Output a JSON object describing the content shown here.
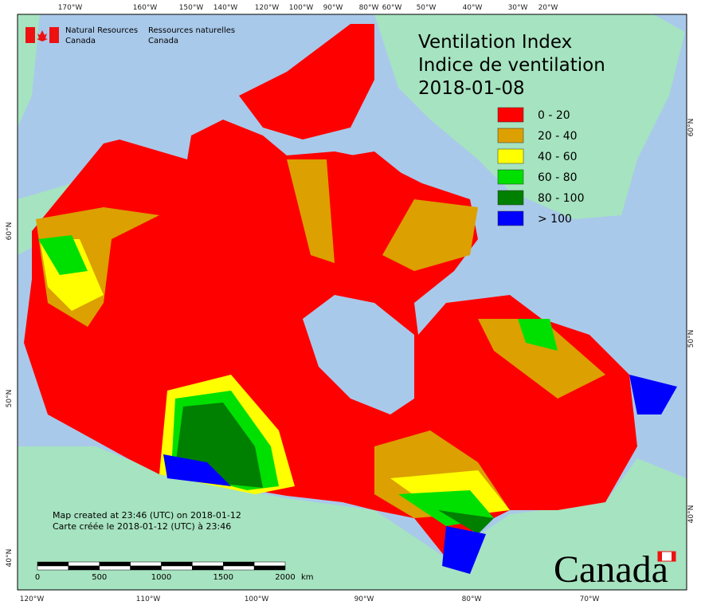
{
  "header": {
    "agency_en": [
      "Natural Resources",
      "Canada"
    ],
    "agency_fr": [
      "Ressources naturelles",
      "Canada"
    ]
  },
  "title": [
    "Ventilation Index",
    "Indice de ventilation",
    "2018-01-08"
  ],
  "legend": {
    "items": [
      {
        "label": "0 - 20",
        "color": "#ff0000"
      },
      {
        "label": "20 - 40",
        "color": "#dca000"
      },
      {
        "label": "40 - 60",
        "color": "#ffff00"
      },
      {
        "label": "60 - 80",
        "color": "#00e000"
      },
      {
        "label": "80 - 100",
        "color": "#008000"
      },
      {
        "label": "> 100",
        "color": "#0000ff"
      }
    ]
  },
  "graticule": {
    "top": [
      "170°W",
      "160°W",
      "150°W",
      "140°W",
      "120°W",
      "100°W",
      "90°W",
      "80°W",
      "60°W",
      "50°W",
      "40°W",
      "30°W",
      "20°W"
    ],
    "bottom": [
      "120°W",
      "110°W",
      "100°W",
      "90°W",
      "80°W",
      "70°W"
    ],
    "left": [
      "60°N",
      "50°N",
      "40°N"
    ],
    "right": [
      "60°N",
      "50°N",
      "40°N"
    ]
  },
  "footer": {
    "created_en": "Map created at 23:46 (UTC) on 2018-01-12",
    "created_fr": "Carte créée le 2018-01-12 (UTC) à 23:46"
  },
  "scale_bar": {
    "ticks": [
      0,
      500,
      1000,
      1500,
      2000
    ],
    "unit": "km"
  },
  "wordmark": "Canada"
}
